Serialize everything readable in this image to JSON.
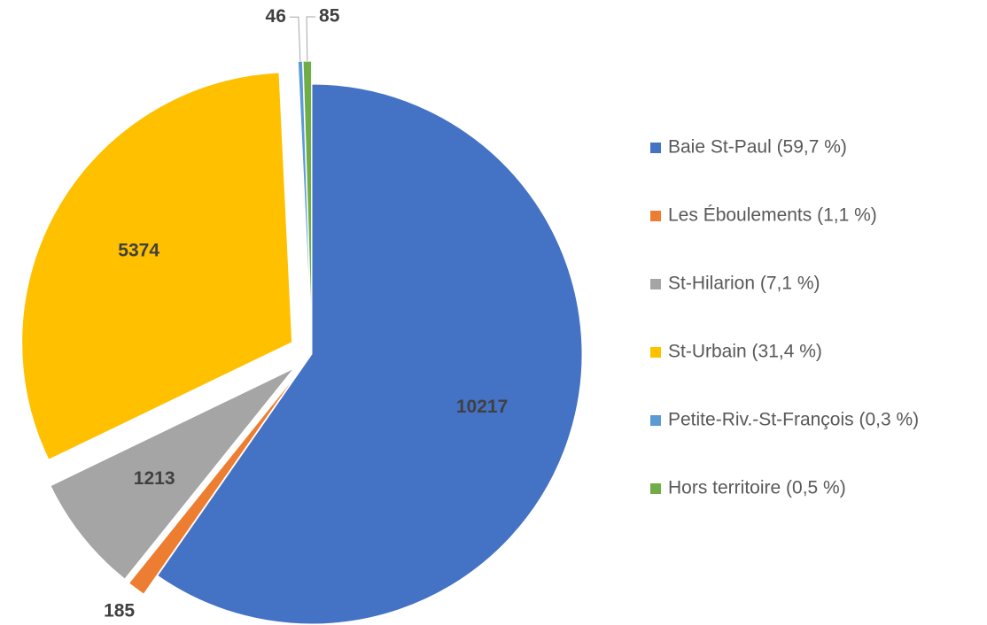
{
  "chart_data": {
    "type": "pie",
    "categories": [
      "Baie St-Paul  (59,7 %)",
      "Les Éboulements  (1,1 %)",
      "St-Hilarion  (7,1 %)",
      "St-Urbain  (31,4 %)",
      "Petite-Riv.-St-François  (0,3 %)",
      "Hors territoire  (0,5 %)"
    ],
    "values": [
      10217,
      185,
      1213,
      5374,
      46,
      85
    ],
    "colors": [
      "#4472c4",
      "#ed7d31",
      "#a5a5a5",
      "#ffc000",
      "#5b9bd5",
      "#70ad47"
    ],
    "legend": "right"
  }
}
